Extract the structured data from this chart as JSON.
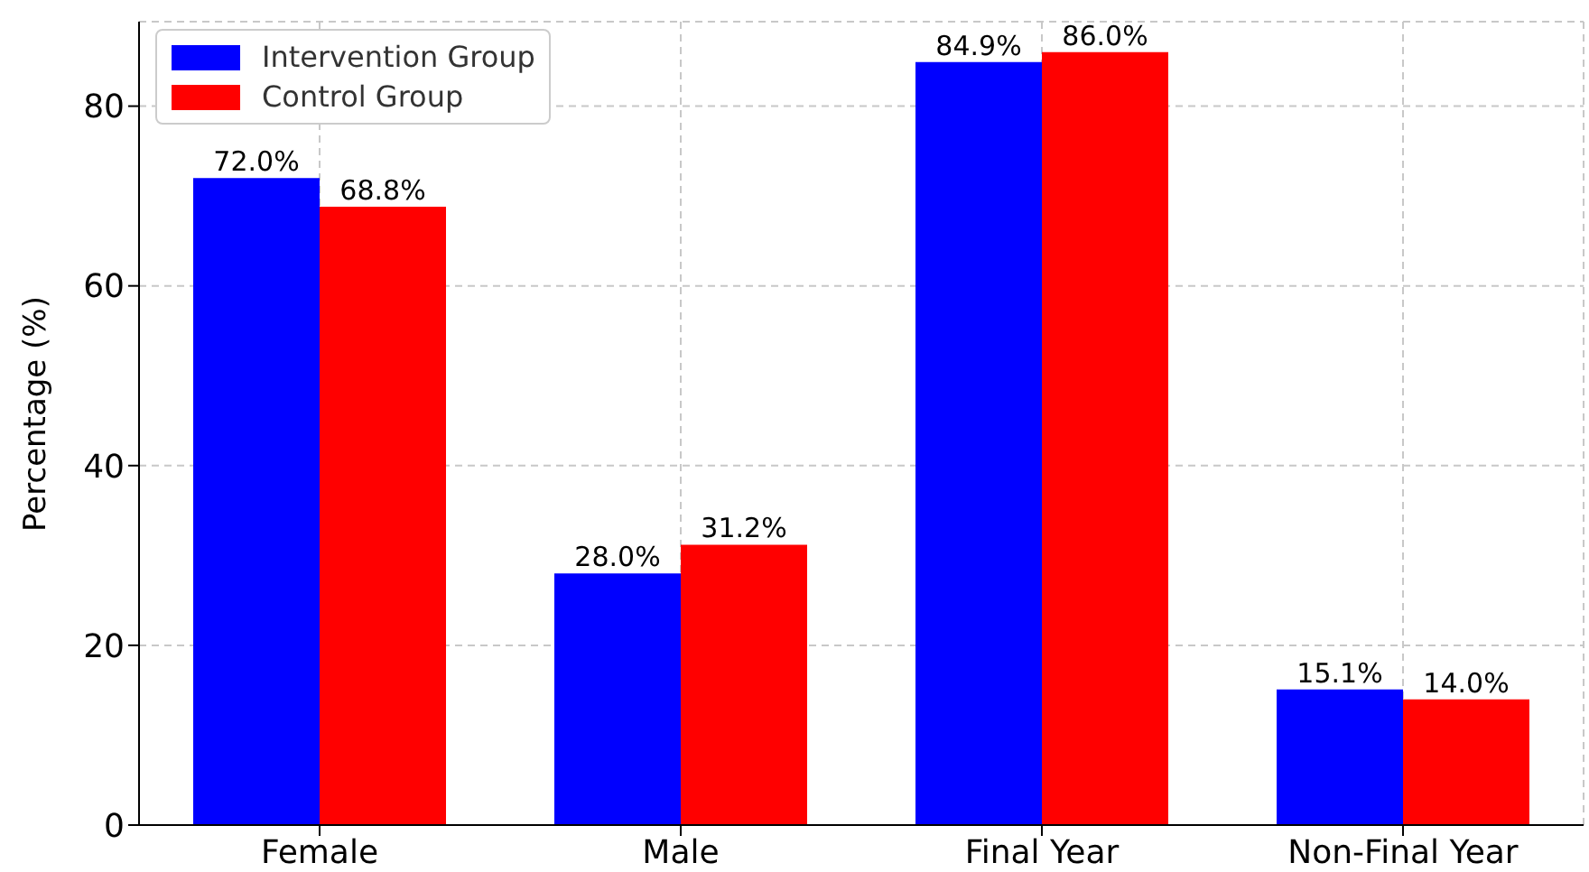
{
  "chart_data": {
    "type": "bar",
    "ylabel": "Percentage (%)",
    "categories": [
      "Female",
      "Male",
      "Final Year",
      "Non-Final Year"
    ],
    "series": [
      {
        "name": "Intervention Group",
        "color": "#0000ff",
        "values": [
          72.0,
          28.0,
          84.9,
          15.1
        ],
        "value_labels": [
          "72.0%",
          "28.0%",
          "84.9%",
          "15.1%"
        ]
      },
      {
        "name": "Control Group",
        "color": "#ff0000",
        "values": [
          68.8,
          31.2,
          86.0,
          14.0
        ],
        "value_labels": [
          "68.8%",
          "31.2%",
          "86.0%",
          "14.0%"
        ]
      }
    ],
    "ylim": [
      0,
      89.4
    ],
    "yticks": [
      0,
      20,
      40,
      60,
      80
    ],
    "grid": true,
    "legend": "top left"
  }
}
